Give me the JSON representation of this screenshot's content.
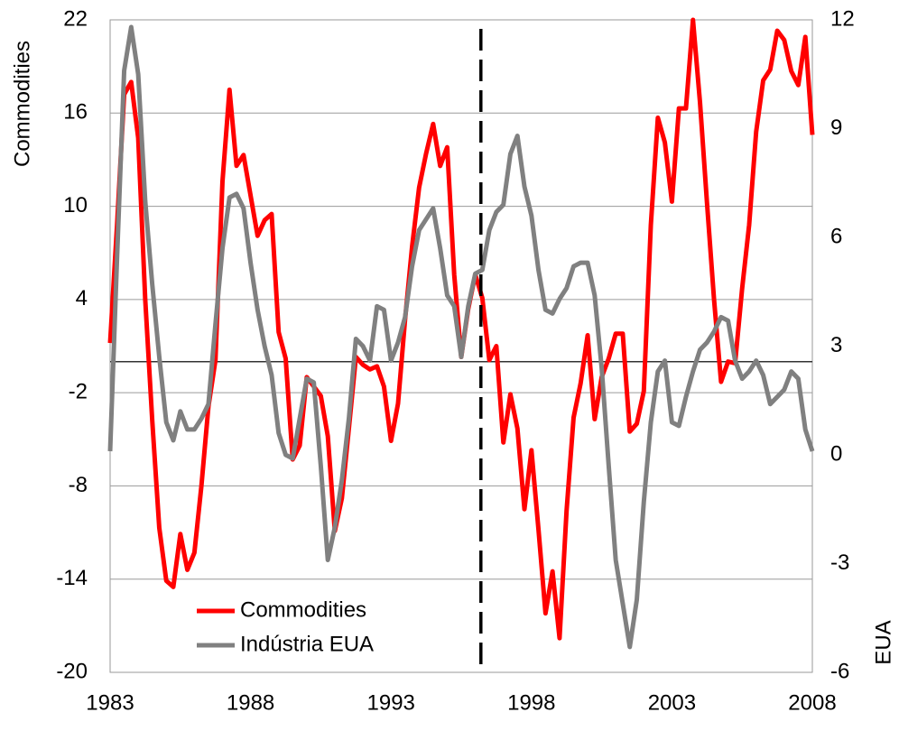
{
  "chart_data": {
    "type": "line",
    "ylabel": "Commodities",
    "y2label": "EUA",
    "x": [
      1983,
      1983.25,
      1983.5,
      1983.75,
      1984,
      1984.25,
      1984.5,
      1984.75,
      1985,
      1985.25,
      1985.5,
      1985.75,
      1986,
      1986.25,
      1986.5,
      1986.75,
      1987,
      1987.25,
      1987.5,
      1987.75,
      1988,
      1988.25,
      1988.5,
      1988.75,
      1989,
      1989.25,
      1989.5,
      1989.75,
      1990,
      1990.25,
      1990.5,
      1990.75,
      1991,
      1991.25,
      1991.5,
      1991.75,
      1992,
      1992.25,
      1992.5,
      1992.75,
      1993,
      1993.25,
      1993.5,
      1993.75,
      1994,
      1994.25,
      1994.5,
      1994.75,
      1995,
      1995.25,
      1995.5,
      1995.75,
      1996,
      1996.25,
      1996.5,
      1996.75,
      1997,
      1997.25,
      1997.5,
      1997.75,
      1998,
      1998.25,
      1998.5,
      1998.75,
      1999,
      1999.25,
      1999.5,
      1999.75,
      2000,
      2000.25,
      2000.5,
      2000.75,
      2001,
      2001.25,
      2001.5,
      2001.75,
      2002,
      2002.25,
      2002.5,
      2002.75,
      2003,
      2003.25,
      2003.5,
      2003.75,
      2004,
      2004.25,
      2004.5,
      2004.75,
      2005,
      2005.25,
      2005.5,
      2005.75,
      2006,
      2006.25,
      2006.5,
      2006.75,
      2007,
      2007.25,
      2007.5,
      2007.75,
      2008
    ],
    "series": [
      {
        "name": "Commodities",
        "color": "#ff0000",
        "values": [
          1.2,
          8.9,
          17.2,
          18.0,
          14.4,
          4.0,
          -3.8,
          -10.7,
          -14.1,
          -14.5,
          -11.1,
          -13.4,
          -12.3,
          -8.0,
          -2.9,
          0.1,
          11.6,
          17.5,
          12.6,
          13.3,
          10.7,
          8.1,
          9.1,
          9.5,
          1.9,
          0.2,
          -6.3,
          -5.4,
          -1.0,
          -1.6,
          -2.2,
          -4.8,
          -10.9,
          -8.8,
          -4.3,
          0.3,
          -0.2,
          -0.5,
          -0.3,
          -1.6,
          -5.1,
          -2.7,
          2.7,
          7.4,
          11.2,
          13.4,
          15.3,
          12.6,
          13.8,
          5.6,
          0.3,
          3.4,
          5.6,
          4.1,
          0.1,
          1.0,
          -5.2,
          -2.1,
          -4.3,
          -9.5,
          -5.7,
          -10.8,
          -16.2,
          -13.5,
          -17.8,
          -9.6,
          -3.6,
          -1.4,
          1.7,
          -3.7,
          -1.0,
          0.2,
          1.8,
          1.8,
          -4.5,
          -4.0,
          -1.9,
          8.8,
          15.7,
          14.1,
          10.3,
          16.3,
          16.3,
          22.0,
          16.7,
          10.2,
          4.0,
          -1.3,
          0.0,
          -0.1,
          4.7,
          8.8,
          14.8,
          18.1,
          18.8,
          21.3,
          20.7,
          18.7,
          17.8,
          20.9,
          14.6
        ]
      },
      {
        "name": "Indústria EUA",
        "color": "#808080",
        "axis": "y2",
        "values": [
          0.1,
          5.5,
          10.6,
          11.8,
          10.5,
          7.0,
          4.7,
          2.7,
          0.9,
          0.4,
          1.2,
          0.7,
          0.7,
          1.0,
          1.4,
          3.6,
          5.7,
          7.1,
          7.2,
          6.8,
          5.3,
          4.0,
          3.0,
          2.2,
          0.6,
          0.0,
          -0.1,
          1.0,
          2.1,
          2.0,
          -0.3,
          -2.9,
          -2.0,
          -0.7,
          1.0,
          3.2,
          3.0,
          2.6,
          4.1,
          4.0,
          2.6,
          3.1,
          3.8,
          5.2,
          6.2,
          6.5,
          6.8,
          5.7,
          4.4,
          4.1,
          2.7,
          4.1,
          5.0,
          5.1,
          6.2,
          6.7,
          6.9,
          8.3,
          8.8,
          7.4,
          6.6,
          5.1,
          4.0,
          3.9,
          4.3,
          4.6,
          5.2,
          5.3,
          5.3,
          4.4,
          2.4,
          -0.3,
          -2.9,
          -4.1,
          -5.3,
          -4.0,
          -1.3,
          0.9,
          2.3,
          2.6,
          0.9,
          0.8,
          1.6,
          2.3,
          2.9,
          3.1,
          3.4,
          3.8,
          3.7,
          2.6,
          2.1,
          2.3,
          2.6,
          2.2,
          1.4,
          1.6,
          1.8,
          2.3,
          2.1,
          0.7,
          0.1
        ]
      }
    ],
    "xlim": [
      1983,
      2008
    ],
    "xticks": [
      1983,
      1988,
      1993,
      1998,
      2003,
      2008
    ],
    "ylim": [
      -20,
      22
    ],
    "yticks": [
      22,
      16,
      10,
      4,
      -2,
      -8,
      -14,
      -20
    ],
    "y2lim": [
      -6,
      12
    ],
    "y2ticks": [
      12,
      9,
      6,
      3,
      0,
      -3,
      -6
    ],
    "vline": 1996.2,
    "grid": true,
    "legend": "lower left"
  }
}
